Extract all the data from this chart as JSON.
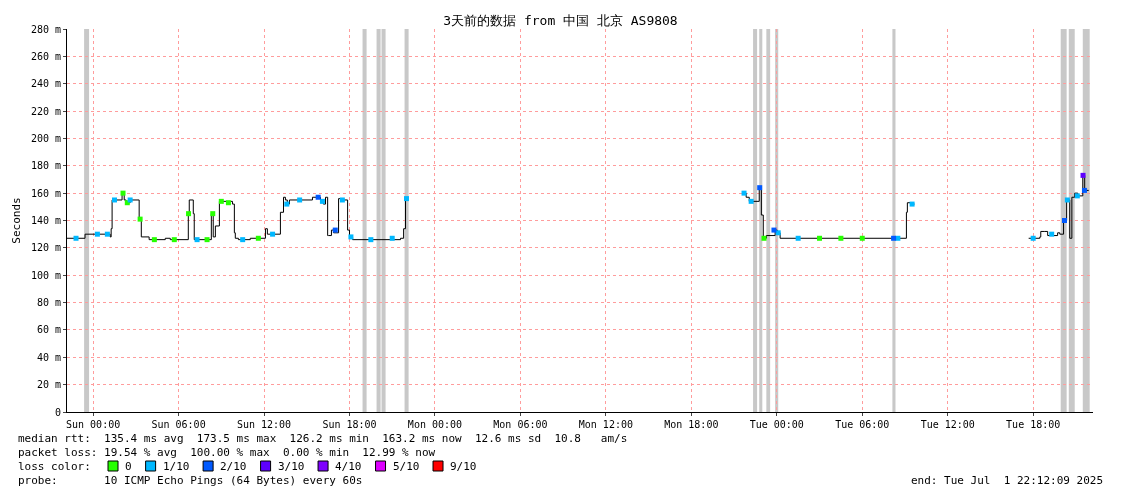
{
  "chart_data": {
    "type": "step",
    "title": "3天前的数据 from 中国 北京 AS9808",
    "ylabel": "Seconds",
    "xlim": [
      "2025-06-28T22:10",
      "2025-07-01T22:12"
    ],
    "xticks": [
      {
        "value": "2025-06-29T00:00",
        "label": "Sun 00:00"
      },
      {
        "value": "2025-06-29T06:00",
        "label": "Sun 06:00"
      },
      {
        "value": "2025-06-29T12:00",
        "label": "Sun 12:00"
      },
      {
        "value": "2025-06-29T18:00",
        "label": "Sun 18:00"
      },
      {
        "value": "2025-06-30T00:00",
        "label": "Mon 00:00"
      },
      {
        "value": "2025-06-30T06:00",
        "label": "Mon 06:00"
      },
      {
        "value": "2025-06-30T12:00",
        "label": "Mon 12:00"
      },
      {
        "value": "2025-06-30T18:00",
        "label": "Mon 18:00"
      },
      {
        "value": "2025-07-01T00:00",
        "label": "Tue 00:00"
      },
      {
        "value": "2025-07-01T06:00",
        "label": "Tue 06:00"
      },
      {
        "value": "2025-07-01T12:00",
        "label": "Tue 12:00"
      },
      {
        "value": "2025-07-01T18:00",
        "label": "Tue 18:00"
      }
    ],
    "ylim": [
      0,
      280
    ],
    "yticks": [
      0,
      {
        "value": 20,
        "label": "20 m"
      },
      {
        "value": 40,
        "label": "40 m"
      },
      {
        "value": 60,
        "label": "60 m"
      },
      {
        "value": 80,
        "label": "80 m"
      },
      {
        "value": 100,
        "label": "100 m"
      },
      {
        "value": 120,
        "label": "120 m"
      },
      {
        "value": 140,
        "label": "140 m"
      },
      {
        "value": 160,
        "label": "160 m"
      },
      {
        "value": 180,
        "label": "180 m"
      },
      {
        "value": 200,
        "label": "200 m"
      },
      {
        "value": 220,
        "label": "220 m"
      },
      {
        "value": 240,
        "label": "240 m"
      },
      {
        "value": 260,
        "label": "260 m"
      },
      {
        "value": 280,
        "label": "280 m"
      }
    ],
    "grid": true,
    "legend": "bottom",
    "legend_title": "loss color:",
    "series": [
      {
        "type": "step",
        "color": "#000000",
        "marker": "none",
        "x": [
          "2025-06-28T22:10",
          "2025-06-28T23:26",
          "2025-06-29T01:12",
          "2025-06-29T01:16",
          "2025-06-29T01:20",
          "2025-06-29T02:02",
          "2025-06-29T02:11",
          "2025-06-29T02:19",
          "2025-06-29T02:36",
          "2025-06-29T03:14",
          "2025-06-29T03:23",
          "2025-06-29T03:56",
          "2025-06-29T05:04",
          "2025-06-29T05:25",
          "2025-06-29T06:41",
          "2025-06-29T06:45",
          "2025-06-29T07:02",
          "2025-06-29T07:06",
          "2025-06-29T08:18",
          "2025-06-29T08:26",
          "2025-06-29T08:35",
          "2025-06-29T08:52",
          "2025-06-29T09:47",
          "2025-06-29T09:55",
          "2025-06-29T09:59",
          "2025-06-29T10:12",
          "2025-06-29T11:02",
          "2025-06-29T12:06",
          "2025-06-29T12:14",
          "2025-06-29T13:09",
          "2025-06-29T13:22",
          "2025-06-29T13:30",
          "2025-06-29T13:38",
          "2025-06-29T13:47",
          "2025-06-29T15:24",
          "2025-06-29T15:58",
          "2025-06-29T16:10",
          "2025-06-29T16:19",
          "2025-06-29T16:28",
          "2025-06-29T16:32",
          "2025-06-29T16:44",
          "2025-06-29T16:53",
          "2025-06-29T17:14",
          "2025-06-29T17:22",
          "2025-06-29T17:52",
          "2025-06-29T18:00",
          "2025-06-29T18:13",
          "2025-06-29T21:35",
          "2025-06-29T21:48",
          "2025-06-29T21:56",
          "2025-06-29T22:05",
          "2025-06-29T22:12",
          "2025-06-30T21:38",
          "2025-06-30T21:51",
          "2025-06-30T22:04",
          "2025-06-30T22:46",
          "2025-06-30T22:55",
          "2025-06-30T23:03",
          "2025-06-30T23:16",
          "2025-06-30T23:53",
          "2025-07-01T00:02",
          "2025-07-01T00:14",
          "2025-07-01T09:06",
          "2025-07-01T09:10",
          "2025-07-01T09:23",
          "2025-07-01T09:40",
          "2025-07-01T09:48",
          "2025-07-01T17:41",
          "2025-07-01T18:28",
          "2025-07-01T18:32",
          "2025-07-01T18:49",
          "2025-07-01T19:01",
          "2025-07-01T19:43",
          "2025-07-01T19:52",
          "2025-07-01T20:08",
          "2025-07-01T20:21",
          "2025-07-01T20:34",
          "2025-07-01T20:43",
          "2025-07-01T20:55",
          "2025-07-01T21:08",
          "2025-07-01T21:29",
          "2025-07-01T21:37",
          "2025-07-01T21:54"
        ],
        "values": [
          127,
          130,
          128,
          134,
          155,
          160,
          155,
          153,
          155,
          141,
          128,
          126,
          127,
          126,
          145,
          155,
          145,
          126,
          145,
          128,
          136,
          154,
          152,
          131,
          127,
          126,
          127,
          134,
          130,
          146,
          157,
          155,
          152,
          155,
          157,
          154,
          152,
          157,
          129,
          129,
          133,
          131,
          156,
          155,
          133,
          128,
          126,
          127,
          134,
          156,
          156,
          null,
          160,
          157,
          154,
          164,
          144,
          127,
          129,
          133,
          131,
          127,
          146,
          153,
          152,
          152,
          null,
          127,
          128,
          132,
          132,
          129,
          131,
          130,
          140,
          155,
          127,
          157,
          160,
          158,
          173,
          162,
          162
        ]
      },
      {
        "type": "scatter",
        "name": "0",
        "color": "#26ff00",
        "x": [
          "2025-06-29T02:06",
          "2025-06-29T02:24",
          "2025-06-29T03:18",
          "2025-06-29T04:18",
          "2025-06-29T05:42",
          "2025-06-29T06:42",
          "2025-06-29T08:00",
          "2025-06-29T08:24",
          "2025-06-29T09:00",
          "2025-06-29T09:30",
          "2025-06-29T11:36",
          "2025-06-30T23:06",
          "2025-07-01T03:00",
          "2025-07-01T04:30",
          "2025-07-01T06:00"
        ],
        "values": [
          160,
          153,
          141,
          126,
          126,
          145,
          126,
          145,
          154,
          153,
          127,
          127,
          127,
          127,
          127
        ]
      },
      {
        "type": "scatter",
        "name": "1/10",
        "color": "#00b8ff",
        "x": [
          "2025-06-28T22:48",
          "2025-06-29T00:18",
          "2025-06-29T01:00",
          "2025-06-29T01:30",
          "2025-06-29T02:36",
          "2025-06-29T07:18",
          "2025-06-29T10:30",
          "2025-06-29T12:36",
          "2025-06-29T13:36",
          "2025-06-29T14:30",
          "2025-06-29T16:06",
          "2025-06-29T17:30",
          "2025-06-29T18:06",
          "2025-06-29T19:30",
          "2025-06-29T21:00",
          "2025-06-29T22:00",
          "2025-06-30T21:42",
          "2025-06-30T22:12",
          "2025-07-01T00:06",
          "2025-07-01T01:30",
          "2025-07-01T08:30",
          "2025-07-01T09:30",
          "2025-07-01T18:00",
          "2025-07-01T19:18",
          "2025-07-01T20:24",
          "2025-07-01T21:06"
        ],
        "values": [
          127,
          130,
          130,
          155,
          155,
          126,
          126,
          130,
          152,
          155,
          154,
          155,
          128,
          126,
          127,
          156,
          160,
          154,
          131,
          127,
          127,
          152,
          127,
          130,
          155,
          158
        ]
      },
      {
        "type": "scatter",
        "name": "2/10",
        "color": "#0059ff",
        "x": [
          "2025-06-29T15:48",
          "2025-06-29T17:00",
          "2025-06-30T22:48",
          "2025-06-30T23:48",
          "2025-07-01T08:12",
          "2025-07-01T20:12",
          "2025-07-01T21:36"
        ],
        "values": [
          157,
          133,
          164,
          133,
          127,
          140,
          162
        ]
      },
      {
        "type": "scatter",
        "name": "3/10",
        "color": "#5e00ff",
        "x": [
          "2025-07-01T21:30"
        ],
        "values": [
          173
        ]
      },
      {
        "type": "scatter",
        "name": "4/10",
        "color": "#7e00ff"
      },
      {
        "type": "scatter",
        "name": "5/10",
        "color": "#dd00ff"
      },
      {
        "type": "scatter",
        "name": "9/10",
        "color": "#ff0000"
      }
    ],
    "marker": "square",
    "bands": [
      {
        "axis": "x",
        "from": "2025-06-28T23:22",
        "to": "2025-06-28T23:43",
        "color": "#c8c8c8"
      },
      {
        "axis": "x",
        "from": "2025-06-29T18:55",
        "to": "2025-06-29T19:12",
        "color": "#c8c8c8"
      },
      {
        "axis": "x",
        "from": "2025-06-29T19:54",
        "to": "2025-06-29T20:11",
        "color": "#c8c8c8"
      },
      {
        "axis": "x",
        "from": "2025-06-29T20:15",
        "to": "2025-06-29T20:32",
        "color": "#c8c8c8"
      },
      {
        "axis": "x",
        "from": "2025-06-29T21:52",
        "to": "2025-06-29T22:09",
        "color": "#c8c8c8"
      },
      {
        "axis": "x",
        "from": "2025-06-30T22:20",
        "to": "2025-06-30T22:37",
        "color": "#c8c8c8"
      },
      {
        "axis": "x",
        "from": "2025-06-30T22:46",
        "to": "2025-06-30T22:59",
        "color": "#c8c8c8"
      },
      {
        "axis": "x",
        "from": "2025-06-30T23:16",
        "to": "2025-06-30T23:32",
        "color": "#c8c8c8"
      },
      {
        "axis": "x",
        "from": "2025-06-30T23:53",
        "to": "2025-07-01T00:06",
        "color": "#c8c8c8"
      },
      {
        "axis": "x",
        "from": "2025-07-01T08:07",
        "to": "2025-07-01T08:20",
        "color": "#c8c8c8"
      },
      {
        "axis": "x",
        "from": "2025-07-01T19:56",
        "to": "2025-07-01T20:21",
        "color": "#c8c8c8"
      },
      {
        "axis": "x",
        "from": "2025-07-01T20:30",
        "to": "2025-07-01T20:55",
        "color": "#c8c8c8"
      },
      {
        "axis": "x",
        "from": "2025-07-01T21:29",
        "to": "2025-07-01T21:58",
        "color": "#c8c8c8"
      }
    ],
    "annotations": [
      "median rtt:  135.4 ms avg  173.5 ms max  126.2 ms min  163.2 ms now  12.6 ms sd  10.8   am/s",
      "packet loss: 19.54 % avg  100.00 % max  0.00 % min  12.99 % now",
      "probe:       10 ICMP Echo Pings (64 Bytes) every 60s",
      "end: Tue Jul  1 22:12:09 2025"
    ]
  }
}
